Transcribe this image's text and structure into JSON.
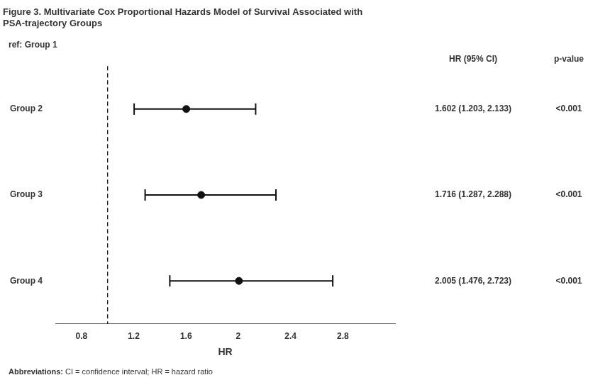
{
  "chart_data": {
    "type": "forest",
    "title": [
      "Figure 3. Multivariate Cox Proportional Hazards Model of Survival Associated with",
      "PSA-trajectory Groups"
    ],
    "ref_label": "ref: Group 1",
    "categories": [
      "Group 2",
      "Group 3",
      "Group 4"
    ],
    "values": [
      1.602,
      1.716,
      2.005
    ],
    "ci_lower": [
      1.203,
      1.287,
      1.476
    ],
    "ci_upper": [
      2.133,
      2.288,
      2.723
    ],
    "columns": [
      {
        "header": "HR (95% CI)",
        "values": [
          "1.602 (1.203, 2.133)",
          "1.716 (1.287, 2.288)",
          "2.005 (1.476, 2.723)"
        ]
      },
      {
        "header": "p-value",
        "values": [
          "<0.001",
          "<0.001",
          "<0.001"
        ]
      }
    ],
    "reference_line": 1.0,
    "xlim": [
      0.6,
      3.2
    ],
    "xticks": [
      0.8,
      1.2,
      1.6,
      2,
      2.4,
      2.8
    ],
    "xlabel": "HR",
    "color": "#111111",
    "grid": false,
    "footnote": [
      "Abbreviations:",
      " CI = confidence interval; HR = hazard ratio"
    ]
  }
}
